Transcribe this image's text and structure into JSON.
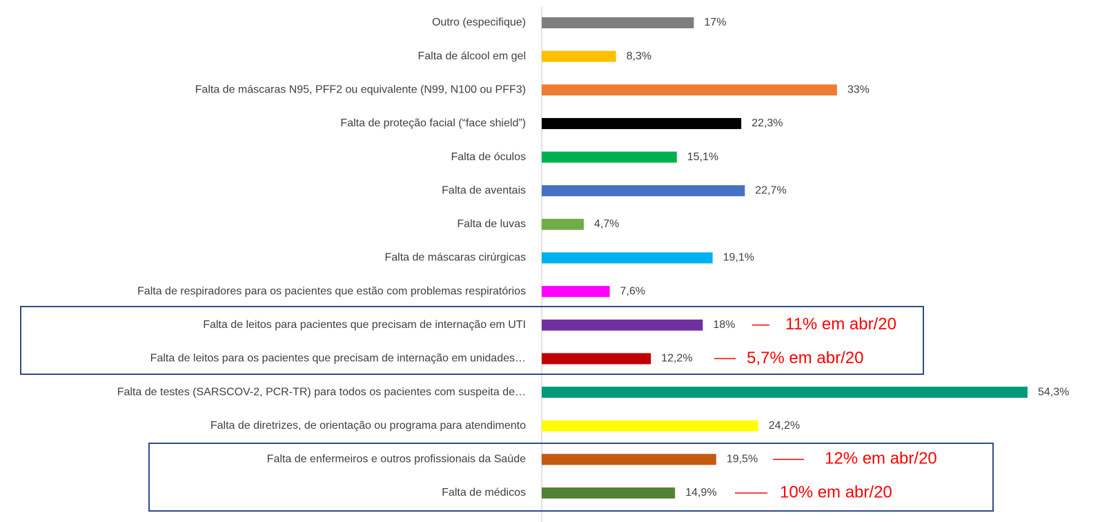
{
  "chart_data": {
    "type": "bar",
    "orientation": "horizontal",
    "categories": [
      "Outro (especifique)",
      "Falta de álcool em gel",
      "Falta de máscaras N95, PFF2 ou equivalente (N99, N100 ou PFF3)",
      "Falta de proteção facial (“face shield”)",
      "Falta de óculos",
      "Falta de aventais",
      "Falta de luvas",
      "Falta de máscaras cirúrgicas",
      "Falta de respiradores para os pacientes que estão com problemas respiratórios",
      "Falta de leitos para pacientes que precisam de internação em UTI",
      "Falta de leitos para os pacientes que precisam de internação em unidades…",
      "Falta de testes (SARSCOV-2, PCR-TR) para todos os pacientes com suspeita de…",
      "Falta de diretrizes, de orientação ou programa para atendimento",
      "Falta de enfermeiros e outros profissionais da Saúde",
      "Falta de médicos"
    ],
    "values": [
      17,
      8.3,
      33,
      22.3,
      15.1,
      22.7,
      4.7,
      19.1,
      7.6,
      18,
      12.2,
      54.3,
      24.2,
      19.5,
      14.9
    ],
    "value_labels": [
      "17%",
      "8,3%",
      "33%",
      "22,3%",
      "15,1%",
      "22,7%",
      "4,7%",
      "19,1%",
      "7,6%",
      "18%",
      "12,2%",
      "54,3%",
      "24,2%",
      "19,5%",
      "14,9%"
    ],
    "colors": [
      "#7f7f7f",
      "#ffc000",
      "#ed7d31",
      "#000000",
      "#00b050",
      "#4472c4",
      "#70ad47",
      "#00b0f0",
      "#ff00ff",
      "#7030a0",
      "#c00000",
      "#00997a",
      "#ffff00",
      "#c55a11",
      "#548235"
    ],
    "annotations": [
      "11% em abr/20",
      "5,7% em abr/20",
      "12% em abr/20",
      "10% em abr/20"
    ]
  }
}
